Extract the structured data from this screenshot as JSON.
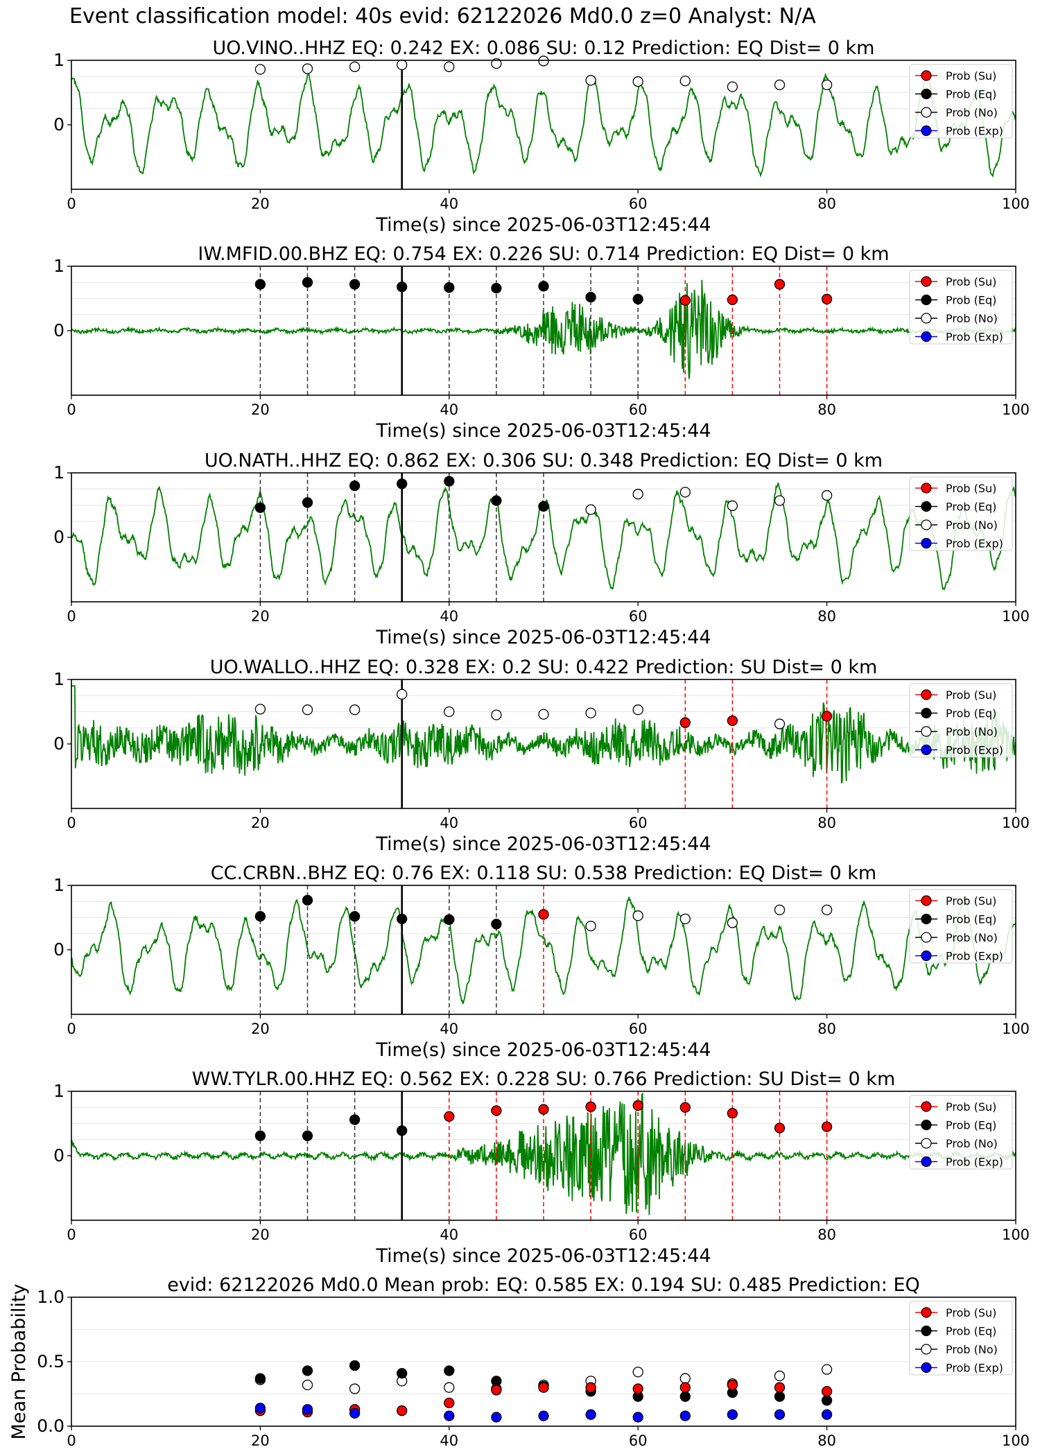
{
  "suptitle": "Event classification model: 40s evid: 62122026 Md0.0 z=0 Analyst: N/A",
  "colors": {
    "waveform": "#008000",
    "prob_su": "#ff0000",
    "prob_eq": "#000000",
    "prob_no": "#ffffff",
    "prob_exp": "#0000ff",
    "pick_line": "#000000",
    "su_line": "#ff0000"
  },
  "legend": [
    "Prob (Su)",
    "Prob (Eq)",
    "Prob (No)",
    "Prob (Exp)"
  ],
  "chart_data": [
    {
      "type": "scatter",
      "title": "UO.VINO..HHZ   EQ: 0.242  EX: 0.086  SU: 0.12   Prediction: EQ    Dist= 0 km",
      "xlabel": "Time(s) since 2025-06-03T12:45:44",
      "ylabel": "",
      "xlim": [
        0,
        100
      ],
      "ylim": [
        -1,
        1
      ],
      "xticks": [
        "0",
        "20",
        "40",
        "60",
        "80",
        "100"
      ],
      "yticks": [
        "0",
        "1"
      ],
      "pick_time": 35,
      "waveform_style": "low_freq",
      "legend_position": "top-right",
      "x": [
        20,
        25,
        30,
        35,
        40,
        45,
        50,
        55,
        60,
        65,
        70,
        75,
        80
      ],
      "series": [
        {
          "name": "Prob (No)",
          "values": [
            0.86,
            0.87,
            0.9,
            0.93,
            0.9,
            0.95,
            0.99,
            0.69,
            0.67,
            0.68,
            0.59,
            0.62,
            0.62
          ]
        }
      ],
      "eq_lines": [],
      "su_lines": []
    },
    {
      "type": "scatter",
      "title": "IW.MFID.00.BHZ   EQ: 0.754  EX: 0.226  SU: 0.714   Prediction: EQ    Dist= 0 km",
      "xlabel": "Time(s) since 2025-06-03T12:45:44",
      "ylabel": "",
      "xlim": [
        0,
        100
      ],
      "ylim": [
        -1,
        1
      ],
      "xticks": [
        "0",
        "20",
        "40",
        "60",
        "80",
        "100"
      ],
      "yticks": [
        "0",
        "1"
      ],
      "pick_time": 35,
      "waveform_style": "bursts",
      "legend_position": "top-right",
      "x": [
        20,
        25,
        30,
        35,
        40,
        45,
        50,
        55,
        60,
        65,
        70,
        75,
        80
      ],
      "series": [
        {
          "name": "Prob (Eq)",
          "values": [
            0.72,
            0.75,
            0.72,
            0.68,
            0.67,
            0.66,
            0.69,
            0.52,
            0.49,
            null,
            null,
            null,
            null
          ]
        },
        {
          "name": "Prob (Su)",
          "values": [
            null,
            null,
            null,
            null,
            null,
            null,
            null,
            null,
            null,
            0.47,
            0.48,
            0.72,
            0.49
          ]
        }
      ],
      "eq_lines": [
        20,
        25,
        30,
        40,
        45,
        50,
        55,
        60
      ],
      "su_lines": [
        65,
        70,
        75,
        80
      ]
    },
    {
      "type": "scatter",
      "title": "UO.NATH..HHZ   EQ: 0.862  EX: 0.306  SU: 0.348   Prediction: EQ    Dist= 0 km",
      "xlabel": "Time(s) since 2025-06-03T12:45:44",
      "ylabel": "",
      "xlim": [
        0,
        100
      ],
      "ylim": [
        -1,
        1
      ],
      "xticks": [
        "0",
        "20",
        "40",
        "60",
        "80",
        "100"
      ],
      "yticks": [
        "0",
        "1"
      ],
      "pick_time": 35,
      "waveform_style": "low_freq",
      "legend_position": "top-right",
      "x": [
        20,
        25,
        30,
        35,
        40,
        45,
        50,
        55,
        60,
        65,
        70,
        75,
        80
      ],
      "series": [
        {
          "name": "Prob (Eq)",
          "values": [
            0.46,
            0.54,
            0.8,
            0.83,
            0.87,
            0.57,
            0.48,
            null,
            null,
            null,
            null,
            null,
            null
          ]
        },
        {
          "name": "Prob (No)",
          "values": [
            null,
            null,
            null,
            null,
            null,
            null,
            null,
            0.43,
            0.67,
            0.7,
            0.49,
            0.57,
            0.65
          ]
        }
      ],
      "eq_lines": [
        20,
        25,
        30,
        40,
        45,
        50
      ],
      "su_lines": []
    },
    {
      "type": "scatter",
      "title": "UO.WALLO..HHZ   EQ: 0.328  EX: 0.2  SU: 0.422   Prediction: SU    Dist= 0 km",
      "xlabel": "Time(s) since 2025-06-03T12:45:44",
      "ylabel": "",
      "xlim": [
        0,
        100
      ],
      "ylim": [
        -1,
        1
      ],
      "xticks": [
        "0",
        "20",
        "40",
        "60",
        "80",
        "100"
      ],
      "yticks": [
        "0",
        "1"
      ],
      "pick_time": 35,
      "waveform_style": "noisy",
      "legend_position": "top-right",
      "x": [
        20,
        25,
        30,
        35,
        40,
        45,
        50,
        55,
        60,
        65,
        70,
        75,
        80
      ],
      "series": [
        {
          "name": "Prob (No)",
          "values": [
            0.54,
            0.53,
            0.53,
            0.77,
            0.5,
            0.45,
            0.46,
            0.48,
            0.53,
            null,
            null,
            0.31,
            null
          ]
        },
        {
          "name": "Prob (Su)",
          "values": [
            null,
            null,
            null,
            null,
            null,
            null,
            null,
            null,
            null,
            0.33,
            0.36,
            null,
            0.43
          ]
        }
      ],
      "eq_lines": [],
      "su_lines": [
        65,
        70,
        80
      ]
    },
    {
      "type": "scatter",
      "title": "CC.CRBN..BHZ   EQ: 0.76  EX: 0.118  SU: 0.538   Prediction: EQ    Dist= 0 km",
      "xlabel": "Time(s) since 2025-06-03T12:45:44",
      "ylabel": "",
      "xlim": [
        0,
        100
      ],
      "ylim": [
        -1,
        1
      ],
      "xticks": [
        "0",
        "20",
        "40",
        "60",
        "80",
        "100"
      ],
      "yticks": [
        "0",
        "1"
      ],
      "pick_time": 35,
      "waveform_style": "low_freq",
      "legend_position": "top-right",
      "x": [
        20,
        25,
        30,
        35,
        40,
        45,
        50,
        55,
        60,
        65,
        70,
        75,
        80
      ],
      "series": [
        {
          "name": "Prob (Eq)",
          "values": [
            0.52,
            0.77,
            0.52,
            0.48,
            0.47,
            0.4,
            null,
            null,
            null,
            null,
            null,
            null,
            null
          ]
        },
        {
          "name": "Prob (Su)",
          "values": [
            null,
            null,
            null,
            null,
            null,
            null,
            0.55,
            null,
            null,
            null,
            null,
            null,
            null
          ]
        },
        {
          "name": "Prob (No)",
          "values": [
            null,
            null,
            null,
            null,
            null,
            null,
            null,
            0.37,
            0.53,
            0.48,
            0.42,
            0.62,
            0.62
          ]
        }
      ],
      "eq_lines": [
        20,
        25,
        30,
        40,
        45
      ],
      "su_lines": [
        50
      ]
    },
    {
      "type": "scatter",
      "title": "WW.TYLR.00.HHZ   EQ: 0.562  EX: 0.228  SU: 0.766   Prediction: SU    Dist= 0 km",
      "xlabel": "Time(s) since 2025-06-03T12:45:44",
      "ylabel": "",
      "xlim": [
        0,
        100
      ],
      "ylim": [
        -1,
        1
      ],
      "xticks": [
        "0",
        "20",
        "40",
        "60",
        "80",
        "100"
      ],
      "yticks": [
        "0",
        "1"
      ],
      "pick_time": 35,
      "waveform_style": "bursts2",
      "legend_position": "top-right",
      "x": [
        20,
        25,
        30,
        35,
        40,
        45,
        50,
        55,
        60,
        65,
        70,
        75,
        80
      ],
      "series": [
        {
          "name": "Prob (Eq)",
          "values": [
            0.31,
            0.31,
            0.56,
            0.39,
            null,
            null,
            null,
            null,
            null,
            null,
            null,
            null,
            null
          ]
        },
        {
          "name": "Prob (Su)",
          "values": [
            null,
            null,
            null,
            null,
            0.61,
            0.7,
            0.72,
            0.76,
            0.78,
            0.75,
            0.66,
            0.43,
            0.45
          ]
        }
      ],
      "eq_lines": [
        20,
        25,
        30
      ],
      "su_lines": [
        40,
        45,
        50,
        55,
        60,
        65,
        70,
        75,
        80
      ]
    },
    {
      "type": "scatter",
      "title": "evid: 62122026  Md0.0   Mean prob:   EQ: 0.585  EX: 0.194  SU: 0.485   Prediction: EQ",
      "xlabel": "",
      "ylabel": "Mean Probability",
      "xlim": [
        0,
        100
      ],
      "ylim": [
        0,
        1
      ],
      "xticks": [
        "0",
        "20",
        "40",
        "60",
        "80",
        "100"
      ],
      "yticks": [
        "0.0",
        "0.5",
        "1.0"
      ],
      "pick_time": null,
      "waveform_style": "none",
      "legend_position": "top-right",
      "x": [
        20,
        25,
        30,
        35,
        40,
        45,
        50,
        55,
        60,
        65,
        70,
        75,
        80
      ],
      "series": [
        {
          "name": "Prob (No)",
          "values": [
            0.36,
            0.32,
            0.29,
            0.35,
            0.3,
            0.29,
            0.32,
            0.35,
            0.42,
            0.37,
            0.33,
            0.39,
            0.44
          ]
        },
        {
          "name": "Prob (Eq)",
          "values": [
            0.37,
            0.43,
            0.47,
            0.41,
            0.43,
            0.35,
            0.31,
            0.27,
            0.23,
            0.23,
            0.26,
            0.23,
            0.2
          ]
        },
        {
          "name": "Prob (Su)",
          "values": [
            0.12,
            0.11,
            0.13,
            0.12,
            0.18,
            0.28,
            0.3,
            0.3,
            0.29,
            0.3,
            0.32,
            0.3,
            0.27
          ]
        },
        {
          "name": "Prob (Exp)",
          "values": [
            0.14,
            0.13,
            0.1,
            null,
            0.08,
            0.07,
            0.08,
            0.09,
            0.07,
            0.08,
            0.09,
            0.09,
            0.09
          ]
        }
      ],
      "eq_lines": [],
      "su_lines": []
    }
  ]
}
